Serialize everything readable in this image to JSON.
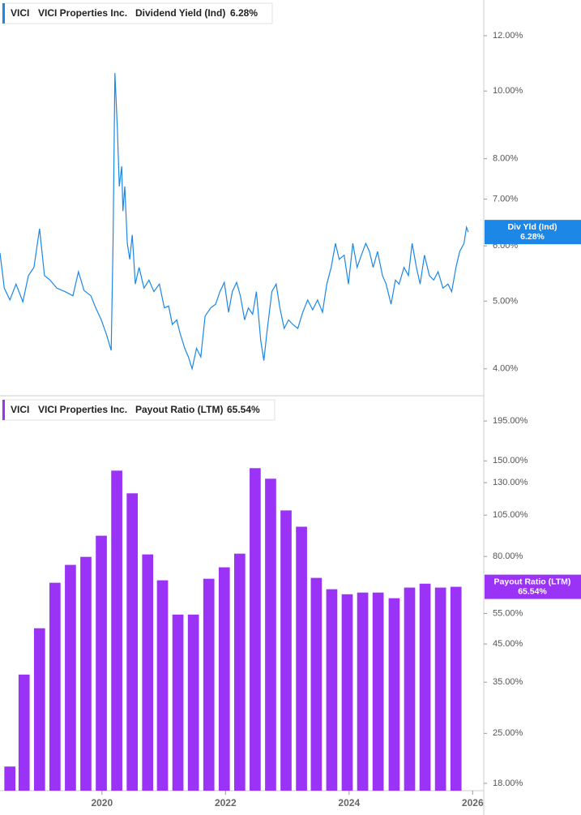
{
  "chart_data": [
    {
      "type": "line",
      "ticker": "VICI",
      "company": "VICI Properties Inc.",
      "title": "Dividend Yield (Ind)",
      "value_label": "6.28%",
      "tag_label": "Div Yld (Ind)",
      "color": "#1c87e6",
      "log_scale": true,
      "xlim": [
        2018.35,
        2026.18
      ],
      "x": [
        2018.35,
        2018.42,
        2018.51,
        2018.61,
        2018.72,
        2018.81,
        2018.9,
        2018.99,
        2019.07,
        2019.16,
        2019.27,
        2019.4,
        2019.53,
        2019.62,
        2019.71,
        2019.82,
        2019.9,
        2019.99,
        2020.07,
        2020.15,
        2020.18,
        2020.21,
        2020.25,
        2020.28,
        2020.32,
        2020.34,
        2020.37,
        2020.41,
        2020.45,
        2020.49,
        2020.54,
        2020.6,
        2020.68,
        2020.76,
        2020.84,
        2020.93,
        2021.01,
        2021.08,
        2021.14,
        2021.21,
        2021.26,
        2021.34,
        2021.4,
        2021.46,
        2021.53,
        2021.6,
        2021.67,
        2021.76,
        2021.84,
        2021.91,
        2021.98,
        2022.05,
        2022.11,
        2022.18,
        2022.24,
        2022.31,
        2022.37,
        2022.44,
        2022.5,
        2022.57,
        2022.62,
        2022.67,
        2022.75,
        2022.82,
        2022.88,
        2022.95,
        2023.02,
        2023.09,
        2023.17,
        2023.25,
        2023.33,
        2023.41,
        2023.49,
        2023.57,
        2023.64,
        2023.71,
        2023.78,
        2023.84,
        2023.92,
        2023.99,
        2024.06,
        2024.13,
        2024.2,
        2024.27,
        2024.33,
        2024.39,
        2024.46,
        2024.54,
        2024.6,
        2024.68,
        2024.75,
        2024.81,
        2024.89,
        2024.96,
        2025.02,
        2025.09,
        2025.15,
        2025.22,
        2025.3,
        2025.37,
        2025.44,
        2025.52,
        2025.6,
        2025.66,
        2025.73,
        2025.79,
        2025.86,
        2025.9,
        2025.93
      ],
      "values": [
        5.86,
        5.22,
        5.02,
        5.29,
        4.99,
        5.44,
        5.59,
        6.35,
        5.44,
        5.36,
        5.22,
        5.16,
        5.09,
        5.51,
        5.18,
        5.09,
        4.89,
        4.7,
        4.49,
        4.25,
        6.05,
        10.61,
        8.8,
        7.3,
        7.8,
        6.73,
        7.3,
        6.05,
        5.74,
        6.22,
        5.29,
        5.59,
        5.22,
        5.36,
        5.16,
        5.29,
        4.89,
        4.92,
        4.63,
        4.7,
        4.51,
        4.28,
        4.16,
        4.0,
        4.28,
        4.16,
        4.76,
        4.89,
        4.95,
        5.16,
        5.32,
        4.82,
        5.16,
        5.32,
        5.09,
        4.7,
        4.89,
        4.79,
        5.16,
        4.39,
        4.11,
        4.51,
        5.16,
        5.29,
        4.89,
        4.57,
        4.7,
        4.63,
        4.57,
        4.82,
        5.02,
        4.86,
        5.02,
        4.82,
        5.29,
        5.59,
        6.05,
        5.74,
        5.82,
        5.29,
        6.05,
        5.59,
        5.82,
        6.05,
        5.89,
        5.59,
        5.89,
        5.44,
        5.29,
        4.95,
        5.36,
        5.29,
        5.59,
        5.44,
        6.05,
        5.59,
        5.29,
        5.82,
        5.44,
        5.36,
        5.51,
        5.22,
        5.29,
        5.16,
        5.59,
        5.89,
        6.05,
        6.38,
        6.28
      ],
      "ylim": [
        3.67,
        13.5
      ],
      "yticks": [
        {
          "value": 4,
          "label": "4.00%"
        },
        {
          "value": 5,
          "label": "5.00%"
        },
        {
          "value": 6,
          "label": "6.00%"
        },
        {
          "value": 7,
          "label": "7.00%"
        },
        {
          "value": 8,
          "label": "8.00%"
        },
        {
          "value": 10,
          "label": "10.00%"
        },
        {
          "value": 12,
          "label": "12.00%"
        }
      ]
    },
    {
      "type": "bar",
      "ticker": "VICI",
      "company": "VICI Properties Inc.",
      "title": "Payout Ratio (LTM)",
      "value_label": "65.54%",
      "tag_label": "Payout Ratio (LTM)",
      "color": "#9a33f5",
      "log_scale": true,
      "xlim": [
        2018.35,
        2026.18
      ],
      "xticks": [
        2020,
        2022,
        2024,
        2026
      ],
      "x": [
        2018.51,
        2018.74,
        2018.99,
        2019.24,
        2019.49,
        2019.74,
        2019.99,
        2020.24,
        2020.49,
        2020.74,
        2020.98,
        2021.23,
        2021.48,
        2021.73,
        2021.98,
        2022.23,
        2022.48,
        2022.73,
        2022.98,
        2023.23,
        2023.47,
        2023.72,
        2023.97,
        2024.22,
        2024.47,
        2024.73,
        2024.98,
        2025.23,
        2025.48,
        2025.73
      ],
      "values": [
        20.1,
        36.8,
        49.9,
        67.3,
        75.7,
        79.8,
        91.7,
        140.7,
        121.2,
        81.1,
        68.4,
        54.6,
        54.6,
        69.1,
        74.5,
        81.5,
        143.0,
        133.4,
        108.3,
        97.3,
        69.5,
        64.5,
        62.4,
        63.1,
        63.1,
        60.8,
        65.2,
        66.9,
        65.2,
        65.54
      ],
      "ylim": [
        17.15,
        229
      ],
      "yticks": [
        {
          "value": 18,
          "label": "18.00%"
        },
        {
          "value": 25,
          "label": "25.00%"
        },
        {
          "value": 35,
          "label": "35.00%"
        },
        {
          "value": 45,
          "label": "45.00%"
        },
        {
          "value": 55,
          "label": "55.00%"
        },
        {
          "value": 80,
          "label": "80.00%"
        },
        {
          "value": 105,
          "label": "105.00%"
        },
        {
          "value": 130,
          "label": "130.00%"
        },
        {
          "value": 150,
          "label": "150.00%"
        },
        {
          "value": 195,
          "label": "195.00%"
        }
      ]
    }
  ]
}
